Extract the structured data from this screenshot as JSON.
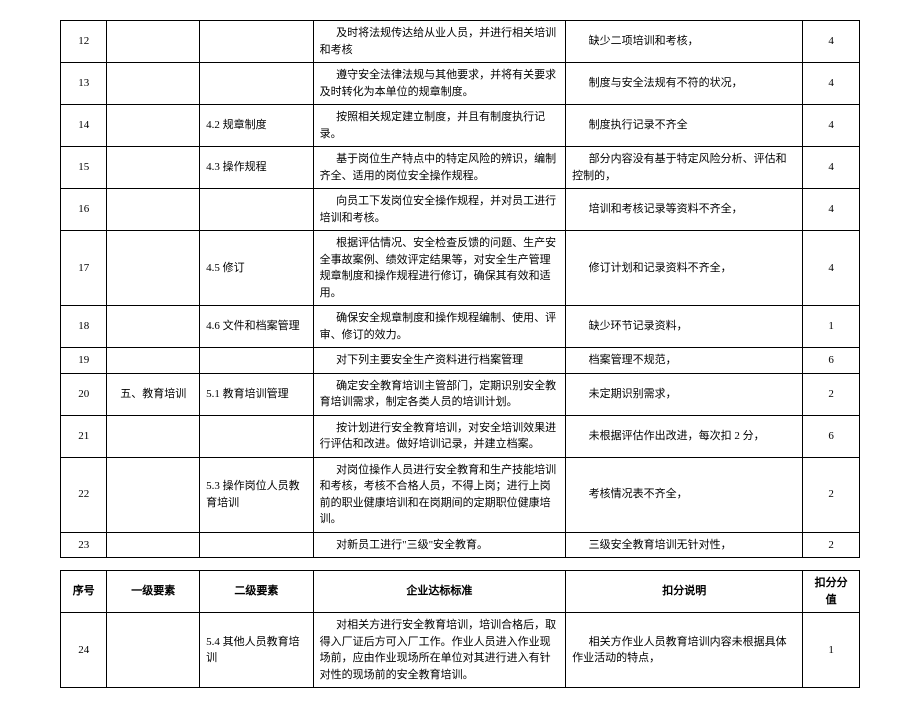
{
  "headers": {
    "seq": "序号",
    "level1": "一级要素",
    "level2": "二级要素",
    "standard": "企业达标标准",
    "desc": "扣分说明",
    "score": "扣分分值"
  },
  "table1": [
    {
      "seq": "12",
      "l1": "",
      "l2": "",
      "std": "及时将法规传达给从业人员，并进行相关培训和考核",
      "desc": "缺少二项培训和考核，",
      "score": "4"
    },
    {
      "seq": "13",
      "l1": "",
      "l2": "",
      "std": "遵守安全法律法规与其他要求，并将有关要求及时转化为本单位的规章制度。",
      "desc": "制度与安全法规有不符的状况，",
      "score": "4"
    },
    {
      "seq": "14",
      "l1": "",
      "l2": "4.2 规章制度",
      "std": "按照相关规定建立制度，并且有制度执行记录。",
      "desc": "制度执行记录不齐全",
      "score": "4"
    },
    {
      "seq": "15",
      "l1": "",
      "l2": "4.3 操作规程",
      "std": "基于岗位生产特点中的特定风险的辨识，编制齐全、适用的岗位安全操作规程。",
      "desc": "部分内容没有基于特定风险分析、评估和控制的，",
      "score": "4"
    },
    {
      "seq": "16",
      "l1": "",
      "l2": "",
      "std": "向员工下发岗位安全操作规程，并对员工进行培训和考核。",
      "desc": "培训和考核记录等资料不齐全，",
      "score": "4"
    },
    {
      "seq": "17",
      "l1": "",
      "l2": "4.5 修订",
      "std": "根据评估情况、安全检查反馈的问题、生产安全事故案例、绩效评定结果等，对安全生产管理规章制度和操作规程进行修订，确保其有效和适用。",
      "desc": "修订计划和记录资料不齐全，",
      "score": "4"
    },
    {
      "seq": "18",
      "l1": "",
      "l2": "4.6 文件和档案管理",
      "std": "确保安全规章制度和操作规程编制、使用、评审、修订的效力。",
      "desc": "缺少环节记录资料，",
      "score": "1"
    },
    {
      "seq": "19",
      "l1": "",
      "l2": "",
      "std": "对下列主要安全生产资料进行档案管理",
      "desc": "档案管理不规范，",
      "score": "6"
    },
    {
      "seq": "20",
      "l1": "五、教育培训",
      "l2": "5.1 教育培训管理",
      "std": "确定安全教育培训主管部门，定期识别安全教育培训需求，制定各类人员的培训计划。",
      "desc": "未定期识别需求，",
      "score": "2"
    },
    {
      "seq": "21",
      "l1": "",
      "l2": "",
      "std": "按计划进行安全教育培训，对安全培训效果进行评估和改进。做好培训记录，并建立档案。",
      "desc": "未根据评估作出改进，每次扣 2 分，",
      "score": "6"
    },
    {
      "seq": "22",
      "l1": "",
      "l2": "5.3 操作岗位人员教育培训",
      "std": "对岗位操作人员进行安全教育和生产技能培训和考核，考核不合格人员，不得上岗；进行上岗前的职业健康培训和在岗期间的定期职位健康培训。",
      "desc": "考核情况表不齐全，",
      "score": "2"
    },
    {
      "seq": "23",
      "l1": "",
      "l2": "",
      "std": "对新员工进行\"三级\"安全教育。",
      "desc": "三级安全教育培训无针对性，",
      "score": "2"
    }
  ],
  "table2": [
    {
      "seq": "24",
      "l1": "",
      "l2": "5.4 其他人员教育培训",
      "std": "对相关方进行安全教育培训，培训合格后，取得入厂证后方可入厂工作。作业人员进入作业现场前，应由作业现场所在单位对其进行进入有针对性的现场前的安全教育培训。",
      "desc": "相关方作业人员教育培训内容未根据具体作业活动的特点，",
      "score": "1"
    }
  ]
}
